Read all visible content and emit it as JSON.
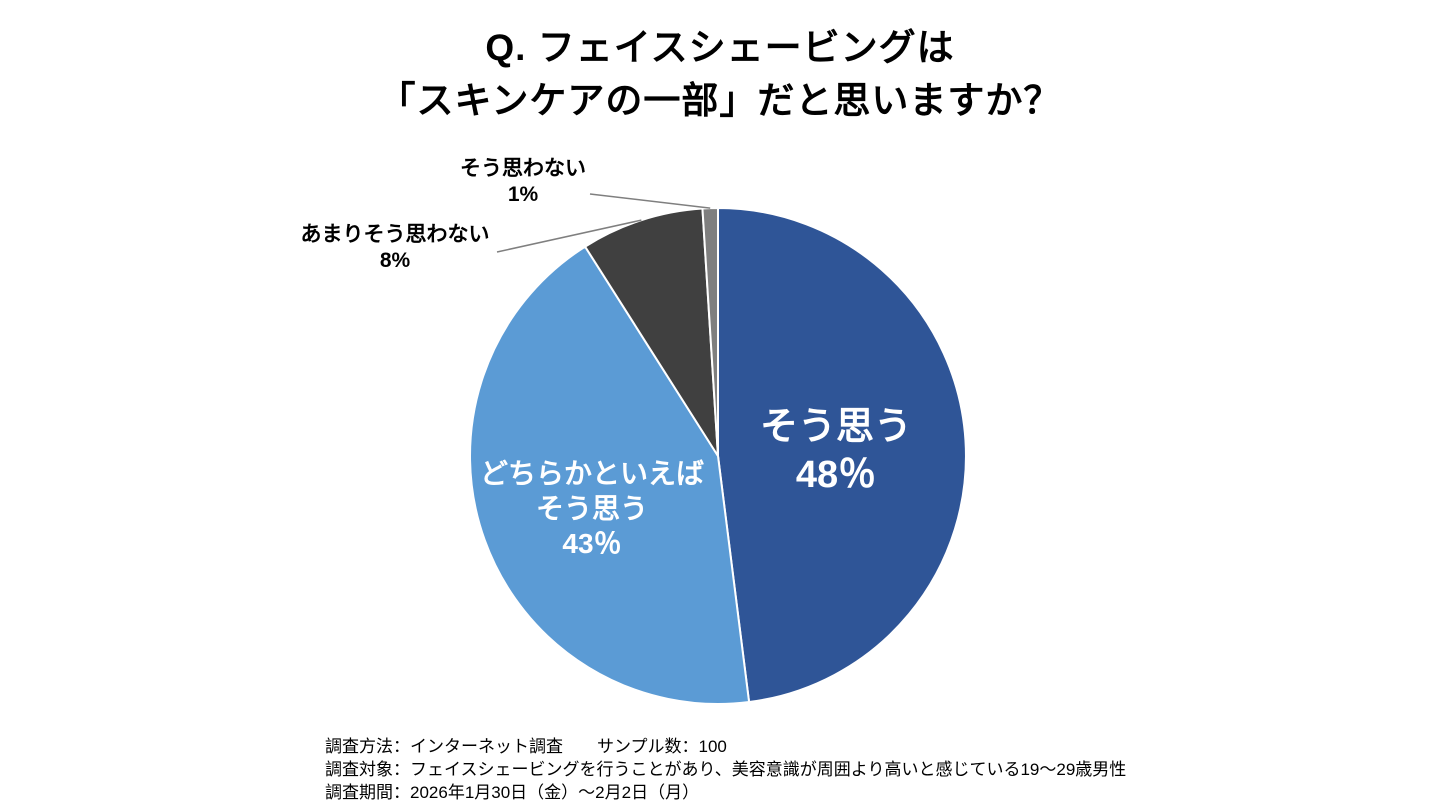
{
  "title": {
    "line1": "Q. フェイスシェービングは",
    "line2": "「スキンケアの一部」だと思いますか？"
  },
  "chart_data": {
    "type": "pie",
    "title": "Q. フェイスシェービングは「スキンケアの一部」だと思いますか？",
    "unit": "%",
    "total": 100,
    "start_angle": "12-oclock",
    "direction": "clockwise",
    "leader_line_color": "#7f7f7f",
    "slices": [
      {
        "id": "agree",
        "label": "そう思う",
        "label_lines": [
          "そう思う"
        ],
        "value": 48,
        "pct_label": "48％",
        "color": "#2f5597",
        "text_color": "#ffffff",
        "label_position": "inside"
      },
      {
        "id": "somewhat-agree",
        "label": "どちらかといえばそう思う",
        "label_lines": [
          "どちらかといえば",
          "そう思う"
        ],
        "value": 43,
        "pct_label": "43％",
        "color": "#5b9bd5",
        "text_color": "#ffffff",
        "label_position": "inside"
      },
      {
        "id": "somewhat-disagree",
        "label": "あまりそう思わない",
        "label_lines": [
          "あまりそう思わない"
        ],
        "value": 8,
        "pct_label": "8%",
        "color": "#404040",
        "text_color": "#000000",
        "label_position": "outside"
      },
      {
        "id": "disagree",
        "label": "そう思わない",
        "label_lines": [
          "そう思わない"
        ],
        "value": 1,
        "pct_label": "1%",
        "color": "#7f7f7f",
        "text_color": "#000000",
        "label_position": "outside"
      }
    ]
  },
  "footer": {
    "line1": "調査方法：インターネット調査　　サンプル数：100",
    "line2": "調査対象：フェイスシェービングを行うことがあり、美容意識が周囲より高いと感じている19～29歳男性",
    "line3": "調査期間：2026年1月30日（金）～2月2日（月）"
  }
}
